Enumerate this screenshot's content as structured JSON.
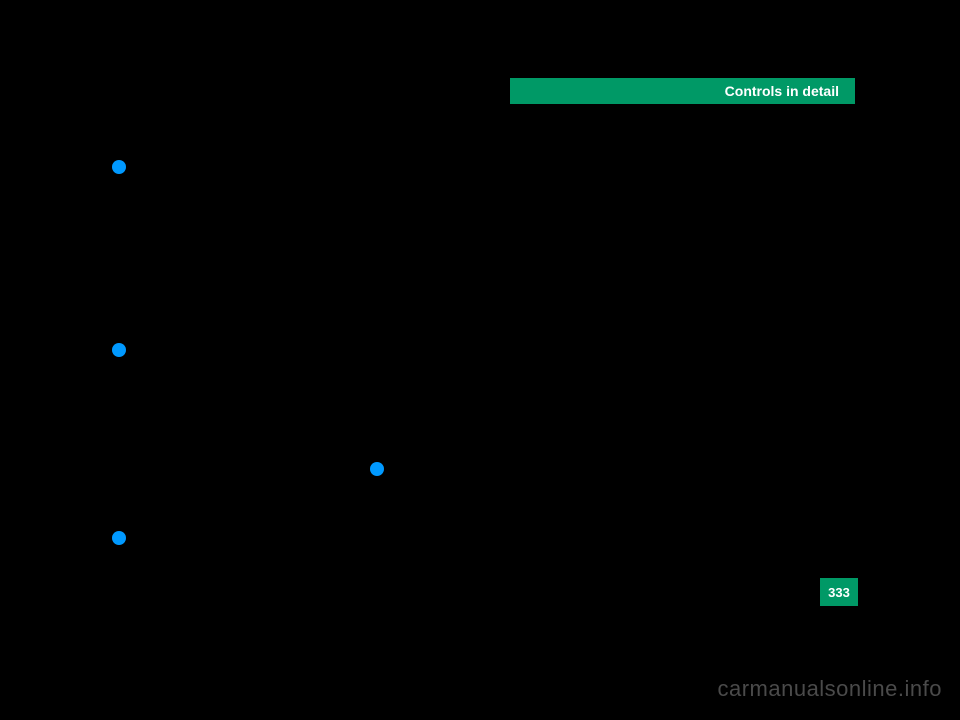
{
  "header": {
    "title": "Controls in detail",
    "bg_color": "#009966",
    "text_color": "#ffffff"
  },
  "bullets": {
    "color": "#0099ff",
    "items": [
      {
        "id": "bullet-1"
      },
      {
        "id": "bullet-2"
      },
      {
        "id": "bullet-3"
      },
      {
        "id": "bullet-4"
      }
    ]
  },
  "page": {
    "number": "333",
    "bg_color": "#009966",
    "text_color": "#ffffff"
  },
  "watermark": {
    "text": "carmanualsonline.info",
    "color": "#4a4a4a"
  },
  "background_color": "#000000"
}
